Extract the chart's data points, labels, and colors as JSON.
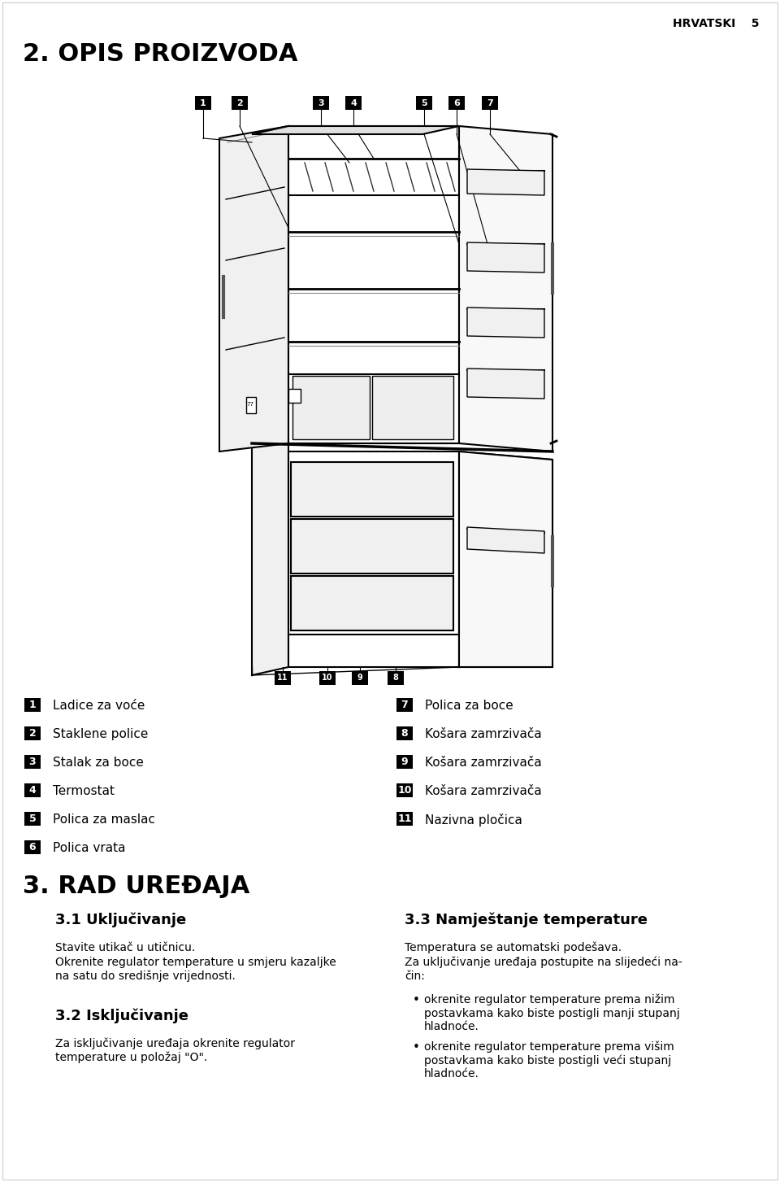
{
  "page_header_right": "HRVATSKI    5",
  "section2_title": "2. OPIS PROIZVODA",
  "section3_title": "3. RAD UREĐAJA",
  "subsection31_title": "3.1 Uključivanje",
  "subsection31_text1": "Stavite utikač u utičnicu.",
  "subsection31_text2": "Okrenite regulator temperature u smjeru kazaljke\nna satu do središnje vrijednosti.",
  "subsection32_title": "3.2 Isključivanje",
  "subsection32_text": "Za isključivanje uređaja okrenite regulator\ntemperature u položaj \"O\".",
  "subsection33_title": "3.3 Namještanje temperature",
  "subsection33_text1": "Temperatura se automatski podešava.",
  "subsection33_text2": "Za uključivanje uređaja postupite na slijedeći na-\nčin:",
  "subsection33_bullet1": "okrenite regulator temperature prema nižim\npostavkama kako biste postigli manji stupanj\nhladnoće.",
  "subsection33_bullet2": "okrenite regulator temperature prema višim\npostavkama kako biste postigli veći stupanj\nhladnoće.",
  "labels_left": [
    {
      "num": "1",
      "text": "Ladice za voće"
    },
    {
      "num": "2",
      "text": "Staklene police"
    },
    {
      "num": "3",
      "text": "Stalak za boce"
    },
    {
      "num": "4",
      "text": "Termostat"
    },
    {
      "num": "5",
      "text": "Polica za maslac"
    },
    {
      "num": "6",
      "text": "Polica vrata"
    }
  ],
  "labels_right": [
    {
      "num": "7",
      "text": "Polica za boce"
    },
    {
      "num": "8",
      "text": "Košara zamrzivača"
    },
    {
      "num": "9",
      "text": "Košara zamrzivača"
    },
    {
      "num": "10",
      "text": "Košara zamrzivača"
    },
    {
      "num": "11",
      "text": "Nazivna pločica"
    }
  ],
  "bg_color": "#ffffff",
  "text_color": "#000000",
  "label_bg": "#000000",
  "label_text": "#ffffff"
}
